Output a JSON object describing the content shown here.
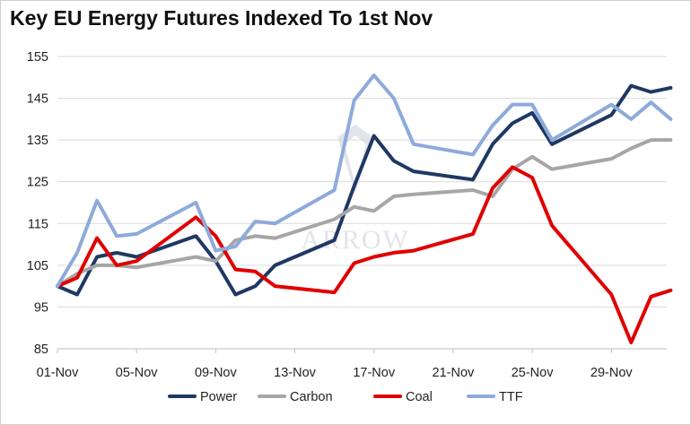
{
  "chart_data": {
    "type": "line",
    "title": "Key EU Energy Futures Indexed To 1st Nov",
    "xlabel": "",
    "ylabel": "",
    "ylim": [
      85,
      155
    ],
    "yticks": [
      "85",
      "95",
      "105",
      "115",
      "125",
      "135",
      "145",
      "155"
    ],
    "xlim": [
      1,
      31.8
    ],
    "xticks": [
      {
        "day": 1,
        "label": "01-Nov"
      },
      {
        "day": 5,
        "label": "05-Nov"
      },
      {
        "day": 9,
        "label": "09-Nov"
      },
      {
        "day": 13,
        "label": "13-Nov"
      },
      {
        "day": 17,
        "label": "17-Nov"
      },
      {
        "day": 21,
        "label": "21-Nov"
      },
      {
        "day": 25,
        "label": "25-Nov"
      },
      {
        "day": 29,
        "label": "29-Nov"
      }
    ],
    "grid": "horizontal",
    "legend_position": "bottom",
    "series": [
      {
        "name": "Power",
        "color": "#1f3864",
        "x": [
          1,
          2,
          3,
          4,
          5,
          8,
          9,
          10,
          11,
          12,
          15,
          16,
          17,
          18,
          19,
          22,
          23,
          24,
          25,
          26,
          29,
          30,
          31,
          32
        ],
        "values": [
          100,
          98,
          107,
          108,
          107,
          112,
          106,
          98,
          100,
          105,
          111,
          124,
          136,
          130,
          127.5,
          125.5,
          134,
          139,
          141.5,
          134,
          141,
          148,
          146.5,
          147.5
        ]
      },
      {
        "name": "Carbon",
        "color": "#a6a6a6",
        "x": [
          1,
          2,
          3,
          4,
          5,
          8,
          9,
          10,
          11,
          12,
          15,
          16,
          17,
          18,
          19,
          22,
          23,
          24,
          25,
          26,
          29,
          30,
          31,
          32
        ],
        "values": [
          100,
          103,
          105,
          105,
          104.5,
          107,
          106,
          111,
          112,
          111.5,
          116,
          119,
          118,
          121.5,
          122,
          123,
          121.5,
          128,
          131,
          128,
          130.5,
          133,
          135,
          135
        ]
      },
      {
        "name": "Coal",
        "color": "#e00000",
        "x": [
          1,
          2,
          3,
          4,
          5,
          8,
          9,
          10,
          11,
          12,
          15,
          16,
          17,
          18,
          19,
          22,
          23,
          24,
          25,
          26,
          29,
          30,
          31,
          32
        ],
        "values": [
          100,
          102,
          111.5,
          105,
          106,
          116.5,
          112,
          104,
          103.5,
          100,
          98.5,
          105.5,
          107,
          108,
          108.5,
          112.5,
          123.5,
          128.5,
          126,
          114.5,
          98,
          86.5,
          97.5,
          99
        ]
      },
      {
        "name": "TTF",
        "color": "#8eaadb",
        "x": [
          1,
          2,
          3,
          4,
          5,
          8,
          9,
          10,
          11,
          12,
          15,
          16,
          17,
          18,
          19,
          22,
          23,
          24,
          25,
          26,
          29,
          30,
          31,
          32
        ],
        "values": [
          100,
          108,
          120.5,
          112,
          112.5,
          120,
          108.5,
          109.5,
          115.5,
          115,
          123,
          144.5,
          150.5,
          145,
          134,
          131.5,
          138.5,
          143.5,
          143.5,
          135,
          143.5,
          140,
          144,
          140
        ]
      }
    ]
  }
}
